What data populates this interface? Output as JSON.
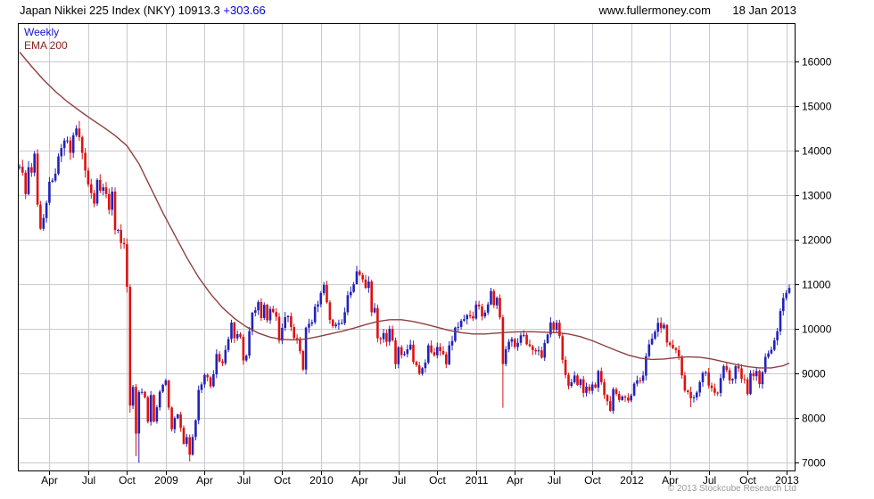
{
  "header": {
    "title_instrument": "Japan Nikkei 225 Index (NKY)",
    "last_price": "10913.3",
    "change": "+303.66",
    "website": "www.fullermoney.com",
    "date": "18 Jan 2013"
  },
  "legend": {
    "timeframe": "Weekly",
    "overlay": "EMA 200"
  },
  "footer": {
    "copyright": "© 2013 Stockcube Research Ltd"
  },
  "chart_data": {
    "type": "candlestick",
    "title": "Japan Nikkei 225 Index (NKY)",
    "last": 10913.3,
    "change": 303.66,
    "timeframe": "Weekly",
    "legend": [
      "Weekly",
      "EMA 200"
    ],
    "grid": true,
    "ylabel": "",
    "y_ticks": [
      7000,
      8000,
      9000,
      10000,
      11000,
      12000,
      13000,
      14000,
      15000,
      16000
    ],
    "y_range": [
      6800,
      16850
    ],
    "x_ticks": [
      {
        "label": "Apr",
        "week": 10
      },
      {
        "label": "Jul",
        "week": 23
      },
      {
        "label": "Oct",
        "week": 36
      },
      {
        "label": "2009",
        "week": 49
      },
      {
        "label": "Apr",
        "week": 62
      },
      {
        "label": "Jul",
        "week": 75
      },
      {
        "label": "Oct",
        "week": 88
      },
      {
        "label": "2010",
        "week": 101
      },
      {
        "label": "Apr",
        "week": 114
      },
      {
        "label": "Jul",
        "week": 127
      },
      {
        "label": "Oct",
        "week": 140
      },
      {
        "label": "2011",
        "week": 153
      },
      {
        "label": "Apr",
        "week": 166
      },
      {
        "label": "Jul",
        "week": 179
      },
      {
        "label": "Oct",
        "week": 192
      },
      {
        "label": "2012",
        "week": 205
      },
      {
        "label": "Apr",
        "week": 218
      },
      {
        "label": "Jul",
        "week": 231
      },
      {
        "label": "Oct",
        "week": 244
      },
      {
        "label": "2013",
        "week": 257
      }
    ],
    "weekly_closes": [
      13629,
      13497,
      13017,
      13622,
      13500,
      13925,
      12783,
      12241,
      12482,
      12821,
      13293,
      13323,
      13476,
      13863,
      14049,
      14219,
      14220,
      13942,
      14339,
      14489,
      14294,
      13942,
      13544,
      13237,
      13039,
      12803,
      13335,
      13094,
      13168,
      13019,
      12666,
      13073,
      12212,
      12215,
      11921,
      11893,
      10938,
      8276,
      8693,
      7649,
      8577,
      8583,
      8462,
      7911,
      8512,
      7918,
      8236,
      8589,
      8740,
      8837,
      8230,
      7745,
      7994,
      8077,
      7779,
      7416,
      7568,
      7173,
      7569,
      7946,
      8626,
      8750,
      8964,
      8908,
      8707,
      8977,
      9432,
      9265,
      9225,
      9523,
      9768,
      10136,
      9786,
      9877,
      9816,
      9287,
      9395,
      9945,
      10357,
      10412,
      10597,
      10238,
      10534,
      10187,
      10444,
      10370,
      10266,
      9731,
      10016,
      10257,
      10283,
      10035,
      9790,
      9770,
      9497,
      9082,
      10022,
      10108,
      10142,
      10494,
      10546,
      10798,
      10982,
      10591,
      10198,
      10057,
      10092,
      10123,
      10126,
      10369,
      10751,
      10824,
      10996,
      11286,
      11204,
      11102,
      10914,
      11057,
      10365,
      10463,
      9785,
      9763,
      9901,
      9705,
      9995,
      9737,
      9204,
      9585,
      9408,
      9431,
      9537,
      9642,
      9253,
      9179,
      8991,
      9114,
      9239,
      9626,
      9471,
      9404,
      9589,
      9500,
      9426,
      9202,
      9625,
      9724,
      10022,
      10039,
      10178,
      10212,
      10304,
      10279,
      10229,
      10541,
      10499,
      10275,
      10360,
      10544,
      10843,
      10526,
      10693,
      10254,
      9207,
      9537,
      9708,
      9768,
      9591,
      9682,
      9850,
      9859,
      9649,
      9607,
      9522,
      9492,
      9514,
      9351,
      9678,
      9868,
      10138,
      9974,
      10132,
      9833,
      9300,
      8963,
      8719,
      8798,
      8950,
      8738,
      8864,
      8560,
      8700,
      8606,
      8748,
      8679,
      9050,
      8801,
      8514,
      8375,
      8160,
      8644,
      8536,
      8402,
      8479,
      8455,
      8390,
      8500,
      8766,
      8841,
      8831,
      8947,
      9384,
      9647,
      9777,
      9930,
      10130,
      10011,
      10084,
      9688,
      9638,
      9561,
      9521,
      9380,
      8953,
      8611,
      8580,
      8440,
      8459,
      8569,
      8798,
      9007,
      9020,
      8724,
      8669,
      8566,
      8555,
      8891,
      9162,
      9070,
      8840,
      8871,
      9159,
      9110,
      8870,
      8863,
      8534,
      9003,
      8933,
      9051,
      8757,
      9024,
      9367,
      9446,
      9527,
      9738,
      9940,
      10395,
      10688,
      10801,
      10913
    ],
    "wick_overrides": {
      "37": [
        10990,
        8116
      ],
      "39": [
        8760,
        7141
      ],
      "40": [
        8620,
        6994
      ],
      "57": [
        7630,
        7021
      ],
      "113": [
        11408,
        11100
      ],
      "162": [
        10310,
        8227
      ],
      "198": [
        8490,
        8135
      ],
      "225": [
        8700,
        8238
      ]
    },
    "ema_points": [
      [
        0,
        16200
      ],
      [
        4,
        15880
      ],
      [
        8,
        15580
      ],
      [
        12,
        15320
      ],
      [
        16,
        15090
      ],
      [
        20,
        14890
      ],
      [
        24,
        14700
      ],
      [
        28,
        14520
      ],
      [
        32,
        14330
      ],
      [
        36,
        14100
      ],
      [
        40,
        13700
      ],
      [
        44,
        13150
      ],
      [
        48,
        12600
      ],
      [
        52,
        12100
      ],
      [
        56,
        11600
      ],
      [
        60,
        11150
      ],
      [
        64,
        10780
      ],
      [
        68,
        10470
      ],
      [
        72,
        10230
      ],
      [
        76,
        10040
      ],
      [
        80,
        9900
      ],
      [
        84,
        9810
      ],
      [
        88,
        9760
      ],
      [
        92,
        9750
      ],
      [
        96,
        9770
      ],
      [
        100,
        9820
      ],
      [
        104,
        9880
      ],
      [
        108,
        9940
      ],
      [
        112,
        10010
      ],
      [
        116,
        10090
      ],
      [
        120,
        10160
      ],
      [
        124,
        10200
      ],
      [
        128,
        10200
      ],
      [
        132,
        10160
      ],
      [
        136,
        10100
      ],
      [
        140,
        10030
      ],
      [
        144,
        9960
      ],
      [
        148,
        9910
      ],
      [
        152,
        9880
      ],
      [
        156,
        9880
      ],
      [
        160,
        9900
      ],
      [
        164,
        9920
      ],
      [
        168,
        9930
      ],
      [
        172,
        9930
      ],
      [
        176,
        9920
      ],
      [
        180,
        9910
      ],
      [
        184,
        9880
      ],
      [
        188,
        9820
      ],
      [
        192,
        9730
      ],
      [
        196,
        9620
      ],
      [
        200,
        9510
      ],
      [
        204,
        9410
      ],
      [
        208,
        9340
      ],
      [
        212,
        9310
      ],
      [
        216,
        9320
      ],
      [
        220,
        9350
      ],
      [
        224,
        9370
      ],
      [
        228,
        9360
      ],
      [
        232,
        9320
      ],
      [
        236,
        9260
      ],
      [
        240,
        9200
      ],
      [
        244,
        9150
      ],
      [
        248,
        9120
      ],
      [
        252,
        9120
      ],
      [
        256,
        9170
      ],
      [
        258,
        9230
      ]
    ],
    "up_color": "#2222bb",
    "down_color": "#dd1111",
    "ema_color": "#8f3f3f",
    "grid_color": "#c9c9d2",
    "axis_color": "#000000"
  }
}
